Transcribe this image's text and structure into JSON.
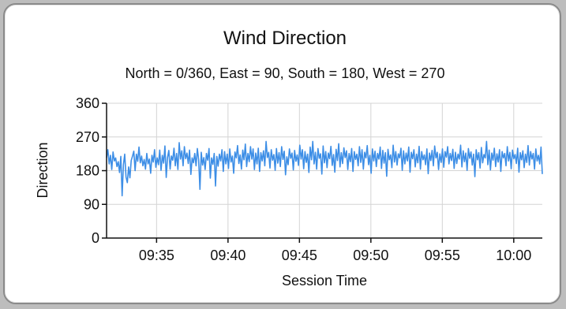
{
  "chart_data": {
    "type": "line",
    "title": "Wind Direction",
    "subtitle": "North = 0/360, East = 90, South = 180, West = 270",
    "xlabel": "Session Time",
    "ylabel": "Direction",
    "x_start": "09:31:30",
    "x_end": "10:02:00",
    "xlim": [
      "09:31:30",
      "10:02:00"
    ],
    "x_ticks": [
      "09:35",
      "09:40",
      "09:45",
      "09:50",
      "09:55",
      "10:00"
    ],
    "ylim": [
      0,
      360
    ],
    "y_ticks": [
      0,
      90,
      180,
      270,
      360
    ],
    "grid": true,
    "legend": "none",
    "series": [
      {
        "name": "",
        "color": "#3d8ee6",
        "values": [
          215,
          236,
          198,
          221,
          183,
          230,
          206,
          214,
          191,
          204,
          175,
          218,
          113,
          196,
          224,
          163,
          148,
          190,
          161,
          207,
          219,
          232,
          180,
          224,
          205,
          243,
          201,
          219,
          193,
          210,
          184,
          226,
          198,
          211,
          173,
          221,
          203,
          236,
          189,
          214,
          196,
          235,
          181,
          221,
          200,
          246,
          162,
          215,
          234,
          184,
          219,
          208,
          240,
          193,
          226,
          183,
          255,
          211,
          233,
          193,
          244,
          212,
          227,
          199,
          235,
          170,
          214,
          201,
          226,
          193,
          239,
          209,
          130,
          229,
          195,
          215,
          183,
          226,
          208,
          239,
          160,
          214,
          197,
          226,
          139,
          218,
          192,
          224,
          206,
          236,
          178,
          231,
          198,
          224,
          186,
          238,
          203,
          219,
          173,
          230,
          214,
          247,
          199,
          222,
          184,
          235,
          209,
          251,
          191,
          226,
          204,
          244,
          211,
          238,
          183,
          227,
          198,
          240,
          178,
          228,
          206,
          233,
          193,
          258,
          215,
          229,
          187,
          236,
          208,
          223,
          181,
          239,
          200,
          228,
          191,
          244,
          210,
          232,
          169,
          217,
          196,
          238,
          213,
          227,
          182,
          234,
          205,
          222,
          194,
          248,
          211,
          236,
          185,
          231,
          202,
          224,
          175,
          243,
          209,
          258,
          198,
          229,
          184,
          239,
          213,
          225,
          171,
          246,
          201,
          231,
          188,
          227,
          212,
          245,
          194,
          223,
          176,
          237,
          207,
          252,
          190,
          228,
          199,
          241,
          215,
          233,
          183,
          226,
          204,
          239,
          178,
          231,
          210,
          224,
          193,
          244,
          202,
          236,
          184,
          229,
          214,
          247,
          196,
          221,
          173,
          238,
          206,
          232,
          191,
          226,
          211,
          243,
          186,
          234,
          200,
          228,
          165,
          237,
          209,
          222,
          188,
          248,
          203,
          231,
          195,
          225,
          214,
          240,
          181,
          233,
          198,
          227,
          206,
          243,
          176,
          229,
          212,
          236,
          190,
          224,
          201,
          245,
          184,
          231,
          209,
          222,
          196,
          238,
          172,
          227,
          207,
          234,
          193,
          246,
          214,
          229,
          183,
          225,
          202,
          238,
          189,
          231,
          216,
          244,
          198,
          226,
          207,
          237,
          186,
          229,
          199,
          224,
          211,
          248,
          190,
          233,
          204,
          227,
          181,
          239,
          213,
          230,
          195,
          224,
          164,
          236,
          209,
          228,
          187,
          242,
          201,
          223,
          214,
          258,
          196,
          235,
          182,
          227,
          208,
          240,
          191,
          225,
          203,
          236,
          178,
          231,
          214,
          226,
          193,
          244,
          206,
          229,
          185,
          235,
          212,
          223,
          199,
          240,
          176,
          228,
          209,
          233,
          188,
          224,
          202,
          247,
          195,
          231,
          211,
          226,
          184,
          238,
          206,
          221,
          198,
          243,
          171
        ]
      }
    ]
  }
}
